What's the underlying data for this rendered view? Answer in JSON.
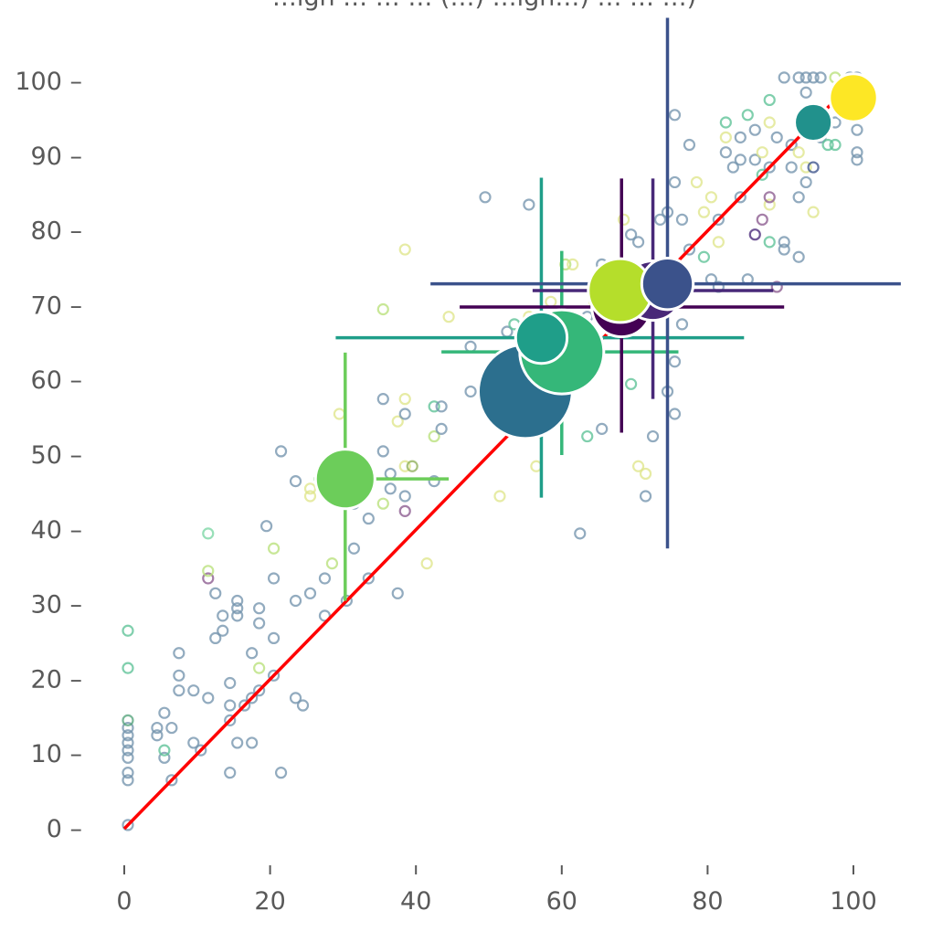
{
  "chart_data": {
    "type": "scatter",
    "title": "…igh … … … (…) …igh…) … … …)",
    "xlim": [
      0,
      100
    ],
    "ylim": [
      0,
      100
    ],
    "x_ticks": [
      0,
      20,
      40,
      60,
      80,
      100
    ],
    "y_ticks": [
      0,
      10,
      20,
      30,
      40,
      50,
      60,
      70,
      80,
      90,
      100
    ],
    "x_tick_labels": [
      "0",
      "20",
      "40",
      "60",
      "80",
      "100"
    ],
    "y_tick_labels": [
      "0 –",
      "10 –",
      "20 –",
      "30 –",
      "40 –",
      "50 –",
      "60 –",
      "70 –",
      "80 –",
      "90 –",
      "100 –"
    ],
    "grid": false,
    "reference_line": {
      "from": [
        0,
        0
      ],
      "to": [
        100,
        100
      ],
      "color": "#ff0000"
    },
    "aggregates": [
      {
        "x": 30.3,
        "y": 46.8,
        "size": 2,
        "color": "#6ccd5a",
        "xerr": [
          26.0,
          44.5
        ],
        "yerr": [
          30.5,
          63.7
        ]
      },
      {
        "x": 55.0,
        "y": 58.5,
        "size": 5,
        "color": "#2c6f8e",
        "xerr": null,
        "yerr": null
      },
      {
        "x": 60.0,
        "y": 63.8,
        "size": 4,
        "color": "#35b779",
        "xerr": [
          43.5,
          76.0
        ],
        "yerr": [
          50.0,
          77.3
        ]
      },
      {
        "x": 57.2,
        "y": 65.7,
        "size": 1.5,
        "color": "#1f9e89",
        "xerr": [
          29.0,
          85.0
        ],
        "yerr": [
          44.3,
          87.1
        ]
      },
      {
        "x": 68.2,
        "y": 69.8,
        "size": 2,
        "color": "#440154",
        "xerr": [
          46.0,
          90.5
        ],
        "yerr": [
          53.0,
          87.0
        ]
      },
      {
        "x": 72.5,
        "y": 72.0,
        "size": 2,
        "color": "#482878",
        "xerr": [
          56.0,
          89.0
        ],
        "yerr": [
          57.5,
          87.0
        ]
      },
      {
        "x": 68.0,
        "y": 72.0,
        "size": 2.3,
        "color": "#b5de2b",
        "xerr": null,
        "yerr": null
      },
      {
        "x": 74.5,
        "y": 72.9,
        "size": 1.5,
        "color": "#3b528b",
        "xerr": [
          42.0,
          106.5
        ],
        "yerr": [
          37.5,
          108.5
        ]
      },
      {
        "x": 94.5,
        "y": 94.5,
        "size": 0.8,
        "color": "#21918c",
        "xerr": null,
        "yerr": null
      },
      {
        "x": 100.0,
        "y": 97.8,
        "size": 1.3,
        "color": "#fde725",
        "xerr": null,
        "yerr": null
      }
    ],
    "points": [
      {
        "x": 0.5,
        "y": 0.5,
        "c": "#7393ad"
      },
      {
        "x": 0.5,
        "y": 6.5,
        "c": "#7393ad"
      },
      {
        "x": 0.5,
        "y": 7.5,
        "c": "#7393ad"
      },
      {
        "x": 0.5,
        "y": 9.5,
        "c": "#7393ad"
      },
      {
        "x": 0.5,
        "y": 10.5,
        "c": "#7393ad"
      },
      {
        "x": 0.5,
        "y": 11.5,
        "c": "#7393ad"
      },
      {
        "x": 0.5,
        "y": 12.5,
        "c": "#7393ad"
      },
      {
        "x": 0.5,
        "y": 13.5,
        "c": "#7393ad"
      },
      {
        "x": 0.5,
        "y": 14.5,
        "c": "#56a47c"
      },
      {
        "x": 0.5,
        "y": 21.5,
        "c": "#5cc196"
      },
      {
        "x": 0.5,
        "y": 26.5,
        "c": "#5cc196"
      },
      {
        "x": 4.5,
        "y": 12.5,
        "c": "#7393ad"
      },
      {
        "x": 4.5,
        "y": 13.5,
        "c": "#7393ad"
      },
      {
        "x": 5.5,
        "y": 9.5,
        "c": "#7393ad"
      },
      {
        "x": 5.5,
        "y": 10.5,
        "c": "#5cc196"
      },
      {
        "x": 5.5,
        "y": 15.5,
        "c": "#7393ad"
      },
      {
        "x": 6.5,
        "y": 6.5,
        "c": "#7393ad"
      },
      {
        "x": 6.5,
        "y": 13.5,
        "c": "#7393ad"
      },
      {
        "x": 7.5,
        "y": 18.5,
        "c": "#7393ad"
      },
      {
        "x": 7.5,
        "y": 20.5,
        "c": "#7393ad"
      },
      {
        "x": 7.5,
        "y": 23.5,
        "c": "#7393ad"
      },
      {
        "x": 9.5,
        "y": 11.5,
        "c": "#7393ad"
      },
      {
        "x": 9.5,
        "y": 18.5,
        "c": "#7393ad"
      },
      {
        "x": 10.5,
        "y": 10.5,
        "c": "#7393ad"
      },
      {
        "x": 11.5,
        "y": 17.5,
        "c": "#7393ad"
      },
      {
        "x": 11.5,
        "y": 33.5,
        "c": "#8a5a8e"
      },
      {
        "x": 11.5,
        "y": 34.5,
        "c": "#b9e07a"
      },
      {
        "x": 11.5,
        "y": 39.5,
        "c": "#7bd6a4"
      },
      {
        "x": 12.5,
        "y": 25.5,
        "c": "#7393ad"
      },
      {
        "x": 12.5,
        "y": 31.5,
        "c": "#7393ad"
      },
      {
        "x": 13.5,
        "y": 26.5,
        "c": "#7393ad"
      },
      {
        "x": 13.5,
        "y": 28.5,
        "c": "#7393ad"
      },
      {
        "x": 14.5,
        "y": 7.5,
        "c": "#7393ad"
      },
      {
        "x": 14.5,
        "y": 14.5,
        "c": "#7393ad"
      },
      {
        "x": 14.5,
        "y": 16.5,
        "c": "#7393ad"
      },
      {
        "x": 14.5,
        "y": 19.5,
        "c": "#7393ad"
      },
      {
        "x": 15.5,
        "y": 11.5,
        "c": "#7393ad"
      },
      {
        "x": 15.5,
        "y": 28.5,
        "c": "#7393ad"
      },
      {
        "x": 15.5,
        "y": 29.5,
        "c": "#7393ad"
      },
      {
        "x": 15.5,
        "y": 30.5,
        "c": "#7393ad"
      },
      {
        "x": 16.5,
        "y": 16.5,
        "c": "#7393ad"
      },
      {
        "x": 17.5,
        "y": 11.5,
        "c": "#7393ad"
      },
      {
        "x": 17.5,
        "y": 17.5,
        "c": "#7393ad"
      },
      {
        "x": 17.5,
        "y": 23.5,
        "c": "#7393ad"
      },
      {
        "x": 18.5,
        "y": 18.5,
        "c": "#7393ad"
      },
      {
        "x": 18.5,
        "y": 21.5,
        "c": "#b9e07a"
      },
      {
        "x": 18.5,
        "y": 27.5,
        "c": "#7393ad"
      },
      {
        "x": 18.5,
        "y": 29.5,
        "c": "#7393ad"
      },
      {
        "x": 19.5,
        "y": 40.5,
        "c": "#7393ad"
      },
      {
        "x": 20.5,
        "y": 20.5,
        "c": "#7393ad"
      },
      {
        "x": 20.5,
        "y": 25.5,
        "c": "#7393ad"
      },
      {
        "x": 20.5,
        "y": 33.5,
        "c": "#7393ad"
      },
      {
        "x": 20.5,
        "y": 37.5,
        "c": "#b9e07a"
      },
      {
        "x": 21.5,
        "y": 7.5,
        "c": "#7393ad"
      },
      {
        "x": 21.5,
        "y": 50.5,
        "c": "#7393ad"
      },
      {
        "x": 23.5,
        "y": 17.5,
        "c": "#7393ad"
      },
      {
        "x": 23.5,
        "y": 30.5,
        "c": "#7393ad"
      },
      {
        "x": 23.5,
        "y": 46.5,
        "c": "#7393ad"
      },
      {
        "x": 24.5,
        "y": 16.5,
        "c": "#7393ad"
      },
      {
        "x": 25.5,
        "y": 31.5,
        "c": "#7393ad"
      },
      {
        "x": 25.5,
        "y": 44.5,
        "c": "#dfe68a"
      },
      {
        "x": 25.5,
        "y": 45.5,
        "c": "#dfe68a"
      },
      {
        "x": 27.5,
        "y": 28.5,
        "c": "#7393ad"
      },
      {
        "x": 27.5,
        "y": 33.5,
        "c": "#7393ad"
      },
      {
        "x": 28.5,
        "y": 35.5,
        "c": "#b9e07a"
      },
      {
        "x": 29.5,
        "y": 55.5,
        "c": "#dfe68a"
      },
      {
        "x": 30.5,
        "y": 30.5,
        "c": "#7393ad"
      },
      {
        "x": 31.5,
        "y": 37.5,
        "c": "#7393ad"
      },
      {
        "x": 31.5,
        "y": 43.5,
        "c": "#7393ad"
      },
      {
        "x": 33.5,
        "y": 33.5,
        "c": "#7393ad"
      },
      {
        "x": 33.5,
        "y": 41.5,
        "c": "#7393ad"
      },
      {
        "x": 35.5,
        "y": 43.5,
        "c": "#b9e07a"
      },
      {
        "x": 35.5,
        "y": 50.5,
        "c": "#7393ad"
      },
      {
        "x": 35.5,
        "y": 57.5,
        "c": "#7393ad"
      },
      {
        "x": 35.5,
        "y": 69.5,
        "c": "#b9e07a"
      },
      {
        "x": 36.5,
        "y": 45.5,
        "c": "#7393ad"
      },
      {
        "x": 36.5,
        "y": 47.5,
        "c": "#7393ad"
      },
      {
        "x": 37.5,
        "y": 31.5,
        "c": "#7393ad"
      },
      {
        "x": 37.5,
        "y": 54.5,
        "c": "#dfe68a"
      },
      {
        "x": 38.5,
        "y": 42.5,
        "c": "#8a5a8e"
      },
      {
        "x": 38.5,
        "y": 44.5,
        "c": "#7393ad"
      },
      {
        "x": 38.5,
        "y": 48.5,
        "c": "#dfe68a"
      },
      {
        "x": 38.5,
        "y": 55.5,
        "c": "#7393ad"
      },
      {
        "x": 38.5,
        "y": 57.5,
        "c": "#dfe68a"
      },
      {
        "x": 38.5,
        "y": 77.5,
        "c": "#dfe68a"
      },
      {
        "x": 39.5,
        "y": 48.5,
        "c": "#8fb05a"
      },
      {
        "x": 41.5,
        "y": 35.5,
        "c": "#dfe68a"
      },
      {
        "x": 42.5,
        "y": 46.5,
        "c": "#7393ad"
      },
      {
        "x": 42.5,
        "y": 52.5,
        "c": "#b9e07a"
      },
      {
        "x": 42.5,
        "y": 56.5,
        "c": "#5cc196"
      },
      {
        "x": 43.5,
        "y": 53.5,
        "c": "#7393ad"
      },
      {
        "x": 43.5,
        "y": 56.5,
        "c": "#7393ad"
      },
      {
        "x": 44.5,
        "y": 68.5,
        "c": "#dfe68a"
      },
      {
        "x": 47.5,
        "y": 58.5,
        "c": "#7393ad"
      },
      {
        "x": 47.5,
        "y": 64.5,
        "c": "#7393ad"
      },
      {
        "x": 49.5,
        "y": 84.5,
        "c": "#7393ad"
      },
      {
        "x": 50.5,
        "y": 55.5,
        "c": "#dfe68a"
      },
      {
        "x": 51.5,
        "y": 44.5,
        "c": "#dfe68a"
      },
      {
        "x": 52.5,
        "y": 66.5,
        "c": "#7393ad"
      },
      {
        "x": 53.5,
        "y": 67.5,
        "c": "#5cc196"
      },
      {
        "x": 55.5,
        "y": 68.5,
        "c": "#dfe68a"
      },
      {
        "x": 55.5,
        "y": 83.5,
        "c": "#7393ad"
      },
      {
        "x": 56.5,
        "y": 48.5,
        "c": "#dfe68a"
      },
      {
        "x": 58.5,
        "y": 60.5,
        "c": "#7393ad"
      },
      {
        "x": 58.5,
        "y": 70.5,
        "c": "#dfe68a"
      },
      {
        "x": 60.5,
        "y": 57.5,
        "c": "#7393ad"
      },
      {
        "x": 60.5,
        "y": 75.5,
        "c": "#b9e07a"
      },
      {
        "x": 61.5,
        "y": 75.5,
        "c": "#dfe68a"
      },
      {
        "x": 62.5,
        "y": 39.5,
        "c": "#7393ad"
      },
      {
        "x": 63.5,
        "y": 52.5,
        "c": "#5cc196"
      },
      {
        "x": 63.5,
        "y": 68.5,
        "c": "#7393ad"
      },
      {
        "x": 64.5,
        "y": 70.5,
        "c": "#dfe68a"
      },
      {
        "x": 65.5,
        "y": 53.5,
        "c": "#7393ad"
      },
      {
        "x": 65.5,
        "y": 75.5,
        "c": "#7393ad"
      },
      {
        "x": 67.5,
        "y": 68.5,
        "c": "#7393ad"
      },
      {
        "x": 68.5,
        "y": 81.5,
        "c": "#dfe68a"
      },
      {
        "x": 69.5,
        "y": 59.5,
        "c": "#5cc196"
      },
      {
        "x": 69.5,
        "y": 79.5,
        "c": "#7393ad"
      },
      {
        "x": 70.5,
        "y": 48.5,
        "c": "#dfe68a"
      },
      {
        "x": 70.5,
        "y": 78.5,
        "c": "#7393ad"
      },
      {
        "x": 71.5,
        "y": 47.5,
        "c": "#dfe68a"
      },
      {
        "x": 71.5,
        "y": 44.5,
        "c": "#7393ad"
      },
      {
        "x": 72.5,
        "y": 52.5,
        "c": "#7393ad"
      },
      {
        "x": 73.5,
        "y": 81.5,
        "c": "#7393ad"
      },
      {
        "x": 74.5,
        "y": 58.5,
        "c": "#7393ad"
      },
      {
        "x": 74.5,
        "y": 82.5,
        "c": "#7393ad"
      },
      {
        "x": 75.5,
        "y": 55.5,
        "c": "#7393ad"
      },
      {
        "x": 75.5,
        "y": 62.5,
        "c": "#7393ad"
      },
      {
        "x": 75.5,
        "y": 86.5,
        "c": "#7393ad"
      },
      {
        "x": 75.5,
        "y": 95.5,
        "c": "#7393ad"
      },
      {
        "x": 76.5,
        "y": 67.5,
        "c": "#7393ad"
      },
      {
        "x": 76.5,
        "y": 81.5,
        "c": "#7393ad"
      },
      {
        "x": 77.5,
        "y": 77.5,
        "c": "#7393ad"
      },
      {
        "x": 77.5,
        "y": 91.5,
        "c": "#7393ad"
      },
      {
        "x": 78.5,
        "y": 86.5,
        "c": "#dfe68a"
      },
      {
        "x": 79.5,
        "y": 76.5,
        "c": "#5cc196"
      },
      {
        "x": 79.5,
        "y": 82.5,
        "c": "#dfe68a"
      },
      {
        "x": 80.5,
        "y": 73.5,
        "c": "#7393ad"
      },
      {
        "x": 80.5,
        "y": 84.5,
        "c": "#dfe68a"
      },
      {
        "x": 81.5,
        "y": 72.5,
        "c": "#7393ad"
      },
      {
        "x": 81.5,
        "y": 78.5,
        "c": "#dfe68a"
      },
      {
        "x": 81.5,
        "y": 81.5,
        "c": "#7393ad"
      },
      {
        "x": 82.5,
        "y": 90.5,
        "c": "#7393ad"
      },
      {
        "x": 82.5,
        "y": 92.5,
        "c": "#dfe68a"
      },
      {
        "x": 82.5,
        "y": 94.5,
        "c": "#5cc196"
      },
      {
        "x": 83.5,
        "y": 88.5,
        "c": "#7393ad"
      },
      {
        "x": 84.5,
        "y": 84.5,
        "c": "#7393ad"
      },
      {
        "x": 84.5,
        "y": 89.5,
        "c": "#7393ad"
      },
      {
        "x": 84.5,
        "y": 92.5,
        "c": "#7393ad"
      },
      {
        "x": 85.5,
        "y": 73.5,
        "c": "#7393ad"
      },
      {
        "x": 85.5,
        "y": 95.5,
        "c": "#5cc196"
      },
      {
        "x": 86.5,
        "y": 79.5,
        "c": "#482878"
      },
      {
        "x": 86.5,
        "y": 89.5,
        "c": "#7393ad"
      },
      {
        "x": 86.5,
        "y": 93.5,
        "c": "#7393ad"
      },
      {
        "x": 87.5,
        "y": 81.5,
        "c": "#8a5a8e"
      },
      {
        "x": 87.5,
        "y": 87.5,
        "c": "#5cc196"
      },
      {
        "x": 87.5,
        "y": 90.5,
        "c": "#dfe68a"
      },
      {
        "x": 88.5,
        "y": 78.5,
        "c": "#5cc196"
      },
      {
        "x": 88.5,
        "y": 83.5,
        "c": "#dfe68a"
      },
      {
        "x": 88.5,
        "y": 84.5,
        "c": "#8a5a8e"
      },
      {
        "x": 88.5,
        "y": 88.5,
        "c": "#7393ad"
      },
      {
        "x": 88.5,
        "y": 94.5,
        "c": "#dfe68a"
      },
      {
        "x": 88.5,
        "y": 97.5,
        "c": "#5cc196"
      },
      {
        "x": 89.5,
        "y": 72.5,
        "c": "#8a5a8e"
      },
      {
        "x": 89.5,
        "y": 92.5,
        "c": "#7393ad"
      },
      {
        "x": 90.5,
        "y": 77.5,
        "c": "#7393ad"
      },
      {
        "x": 90.5,
        "y": 78.5,
        "c": "#7393ad"
      },
      {
        "x": 90.5,
        "y": 100.5,
        "c": "#7393ad"
      },
      {
        "x": 91.5,
        "y": 88.5,
        "c": "#7393ad"
      },
      {
        "x": 91.5,
        "y": 91.5,
        "c": "#7393ad"
      },
      {
        "x": 92.5,
        "y": 76.5,
        "c": "#7393ad"
      },
      {
        "x": 92.5,
        "y": 84.5,
        "c": "#7393ad"
      },
      {
        "x": 92.5,
        "y": 90.5,
        "c": "#dfe68a"
      },
      {
        "x": 92.5,
        "y": 100.5,
        "c": "#7393ad"
      },
      {
        "x": 93.5,
        "y": 86.5,
        "c": "#7393ad"
      },
      {
        "x": 93.5,
        "y": 88.5,
        "c": "#dfe68a"
      },
      {
        "x": 93.5,
        "y": 98.5,
        "c": "#7393ad"
      },
      {
        "x": 93.5,
        "y": 100.5,
        "c": "#7393ad"
      },
      {
        "x": 94.5,
        "y": 82.5,
        "c": "#dfe68a"
      },
      {
        "x": 94.5,
        "y": 88.5,
        "c": "#3b528b"
      },
      {
        "x": 94.5,
        "y": 100.5,
        "c": "#7393ad"
      },
      {
        "x": 95.5,
        "y": 92.5,
        "c": "#7393ad"
      },
      {
        "x": 95.5,
        "y": 100.5,
        "c": "#7393ad"
      },
      {
        "x": 96.5,
        "y": 91.5,
        "c": "#5cc196"
      },
      {
        "x": 97.5,
        "y": 91.5,
        "c": "#5cc196"
      },
      {
        "x": 97.5,
        "y": 94.5,
        "c": "#7393ad"
      },
      {
        "x": 97.5,
        "y": 100.5,
        "c": "#b9e07a"
      },
      {
        "x": 98.5,
        "y": 96.5,
        "c": "#5cc196"
      },
      {
        "x": 98.5,
        "y": 98.5,
        "c": "#b9e07a"
      },
      {
        "x": 99.5,
        "y": 100.5,
        "c": "#7393ad"
      },
      {
        "x": 100.5,
        "y": 89.5,
        "c": "#7393ad"
      },
      {
        "x": 100.5,
        "y": 90.5,
        "c": "#7393ad"
      },
      {
        "x": 100.5,
        "y": 93.5,
        "c": "#7393ad"
      },
      {
        "x": 100.5,
        "y": 100.5,
        "c": "#7393ad"
      }
    ]
  }
}
